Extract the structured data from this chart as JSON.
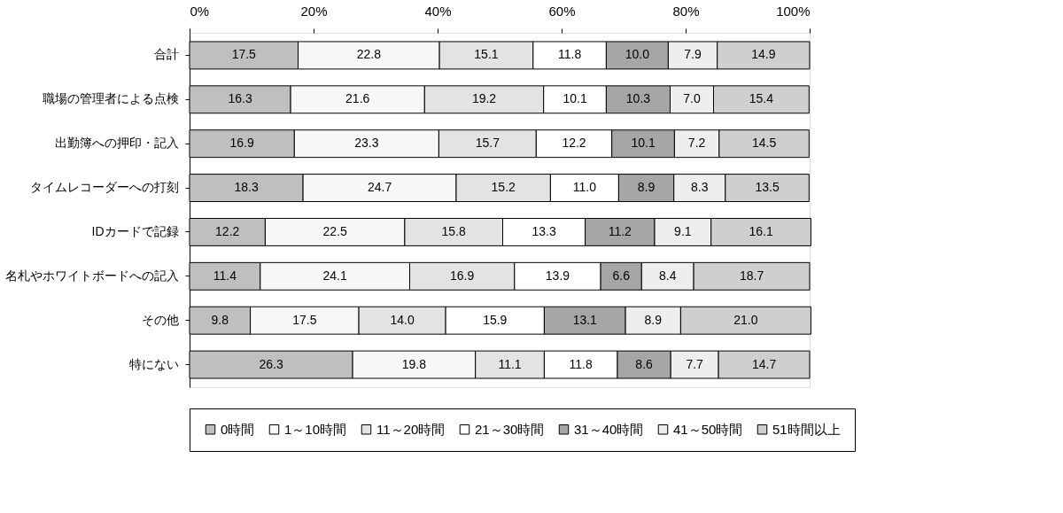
{
  "chart_data": {
    "type": "bar",
    "orientation": "horizontal",
    "stacked": true,
    "grid": false,
    "legend": "bottom",
    "categories": [
      "合計",
      "職場の管理者による点検",
      "出勤簿への押印・記入",
      "タイムレコーダーへの打刻",
      "IDカードで記録",
      "名札やホワイトボードへの記入",
      "その他",
      "特にない"
    ],
    "xlim": [
      0,
      100
    ],
    "xticks": [
      {
        "value": 0,
        "label": "0%"
      },
      {
        "value": 20,
        "label": "20%"
      },
      {
        "value": 40,
        "label": "40%"
      },
      {
        "value": 60,
        "label": "60%"
      },
      {
        "value": 80,
        "label": "80%"
      },
      {
        "value": 100,
        "label": "100%"
      }
    ],
    "series": [
      {
        "name": "0時間",
        "color": "#bfbfbf",
        "values": [
          17.5,
          16.3,
          16.9,
          18.3,
          12.2,
          11.4,
          9.8,
          26.3
        ],
        "value_labels": [
          "17.5",
          "16.3",
          "16.9",
          "18.3",
          "12.2",
          "11.4",
          "9.8",
          "26.3"
        ]
      },
      {
        "name": "1～10時間",
        "color": "#f7f7f7",
        "values": [
          22.8,
          21.6,
          23.3,
          24.7,
          22.5,
          24.1,
          17.5,
          19.8
        ],
        "value_labels": [
          "22.8",
          "21.6",
          "23.3",
          "24.7",
          "22.5",
          "24.1",
          "17.5",
          "19.8"
        ]
      },
      {
        "name": "11～20時間",
        "color": "#e3e3e3",
        "values": [
          15.1,
          19.2,
          15.7,
          15.2,
          15.8,
          16.9,
          14.0,
          11.1
        ],
        "value_labels": [
          "15.1",
          "19.2",
          "15.7",
          "15.2",
          "15.8",
          "16.9",
          "14.0",
          "11.1"
        ]
      },
      {
        "name": "21～30時間",
        "color": "#ffffff",
        "values": [
          11.8,
          10.1,
          12.2,
          11.0,
          13.3,
          13.9,
          15.9,
          11.8
        ],
        "value_labels": [
          "11.8",
          "10.1",
          "12.2",
          "11.0",
          "13.3",
          "13.9",
          "15.9",
          "11.8"
        ]
      },
      {
        "name": "31～40時間",
        "color": "#a6a6a6",
        "values": [
          10.0,
          10.3,
          10.1,
          8.9,
          11.2,
          6.6,
          13.1,
          8.6
        ],
        "value_labels": [
          "10.0",
          "10.3",
          "10.1",
          "8.9",
          "11.2",
          "6.6",
          "13.1",
          "8.6"
        ]
      },
      {
        "name": "41～50時間",
        "color": "#eeeeee",
        "values": [
          7.9,
          7.0,
          7.2,
          8.3,
          9.1,
          8.4,
          8.9,
          7.7
        ],
        "value_labels": [
          "7.9",
          "7.0",
          "7.2",
          "8.3",
          "9.1",
          "8.4",
          "8.9",
          "7.7"
        ]
      },
      {
        "name": "51時間以上",
        "color": "#cfcfcf",
        "values": [
          14.9,
          15.4,
          14.5,
          13.5,
          16.1,
          18.7,
          21.0,
          14.7
        ],
        "value_labels": [
          "14.9",
          "15.4",
          "14.5",
          "13.5",
          "16.1",
          "18.7",
          "21.0",
          "14.7"
        ]
      }
    ]
  }
}
